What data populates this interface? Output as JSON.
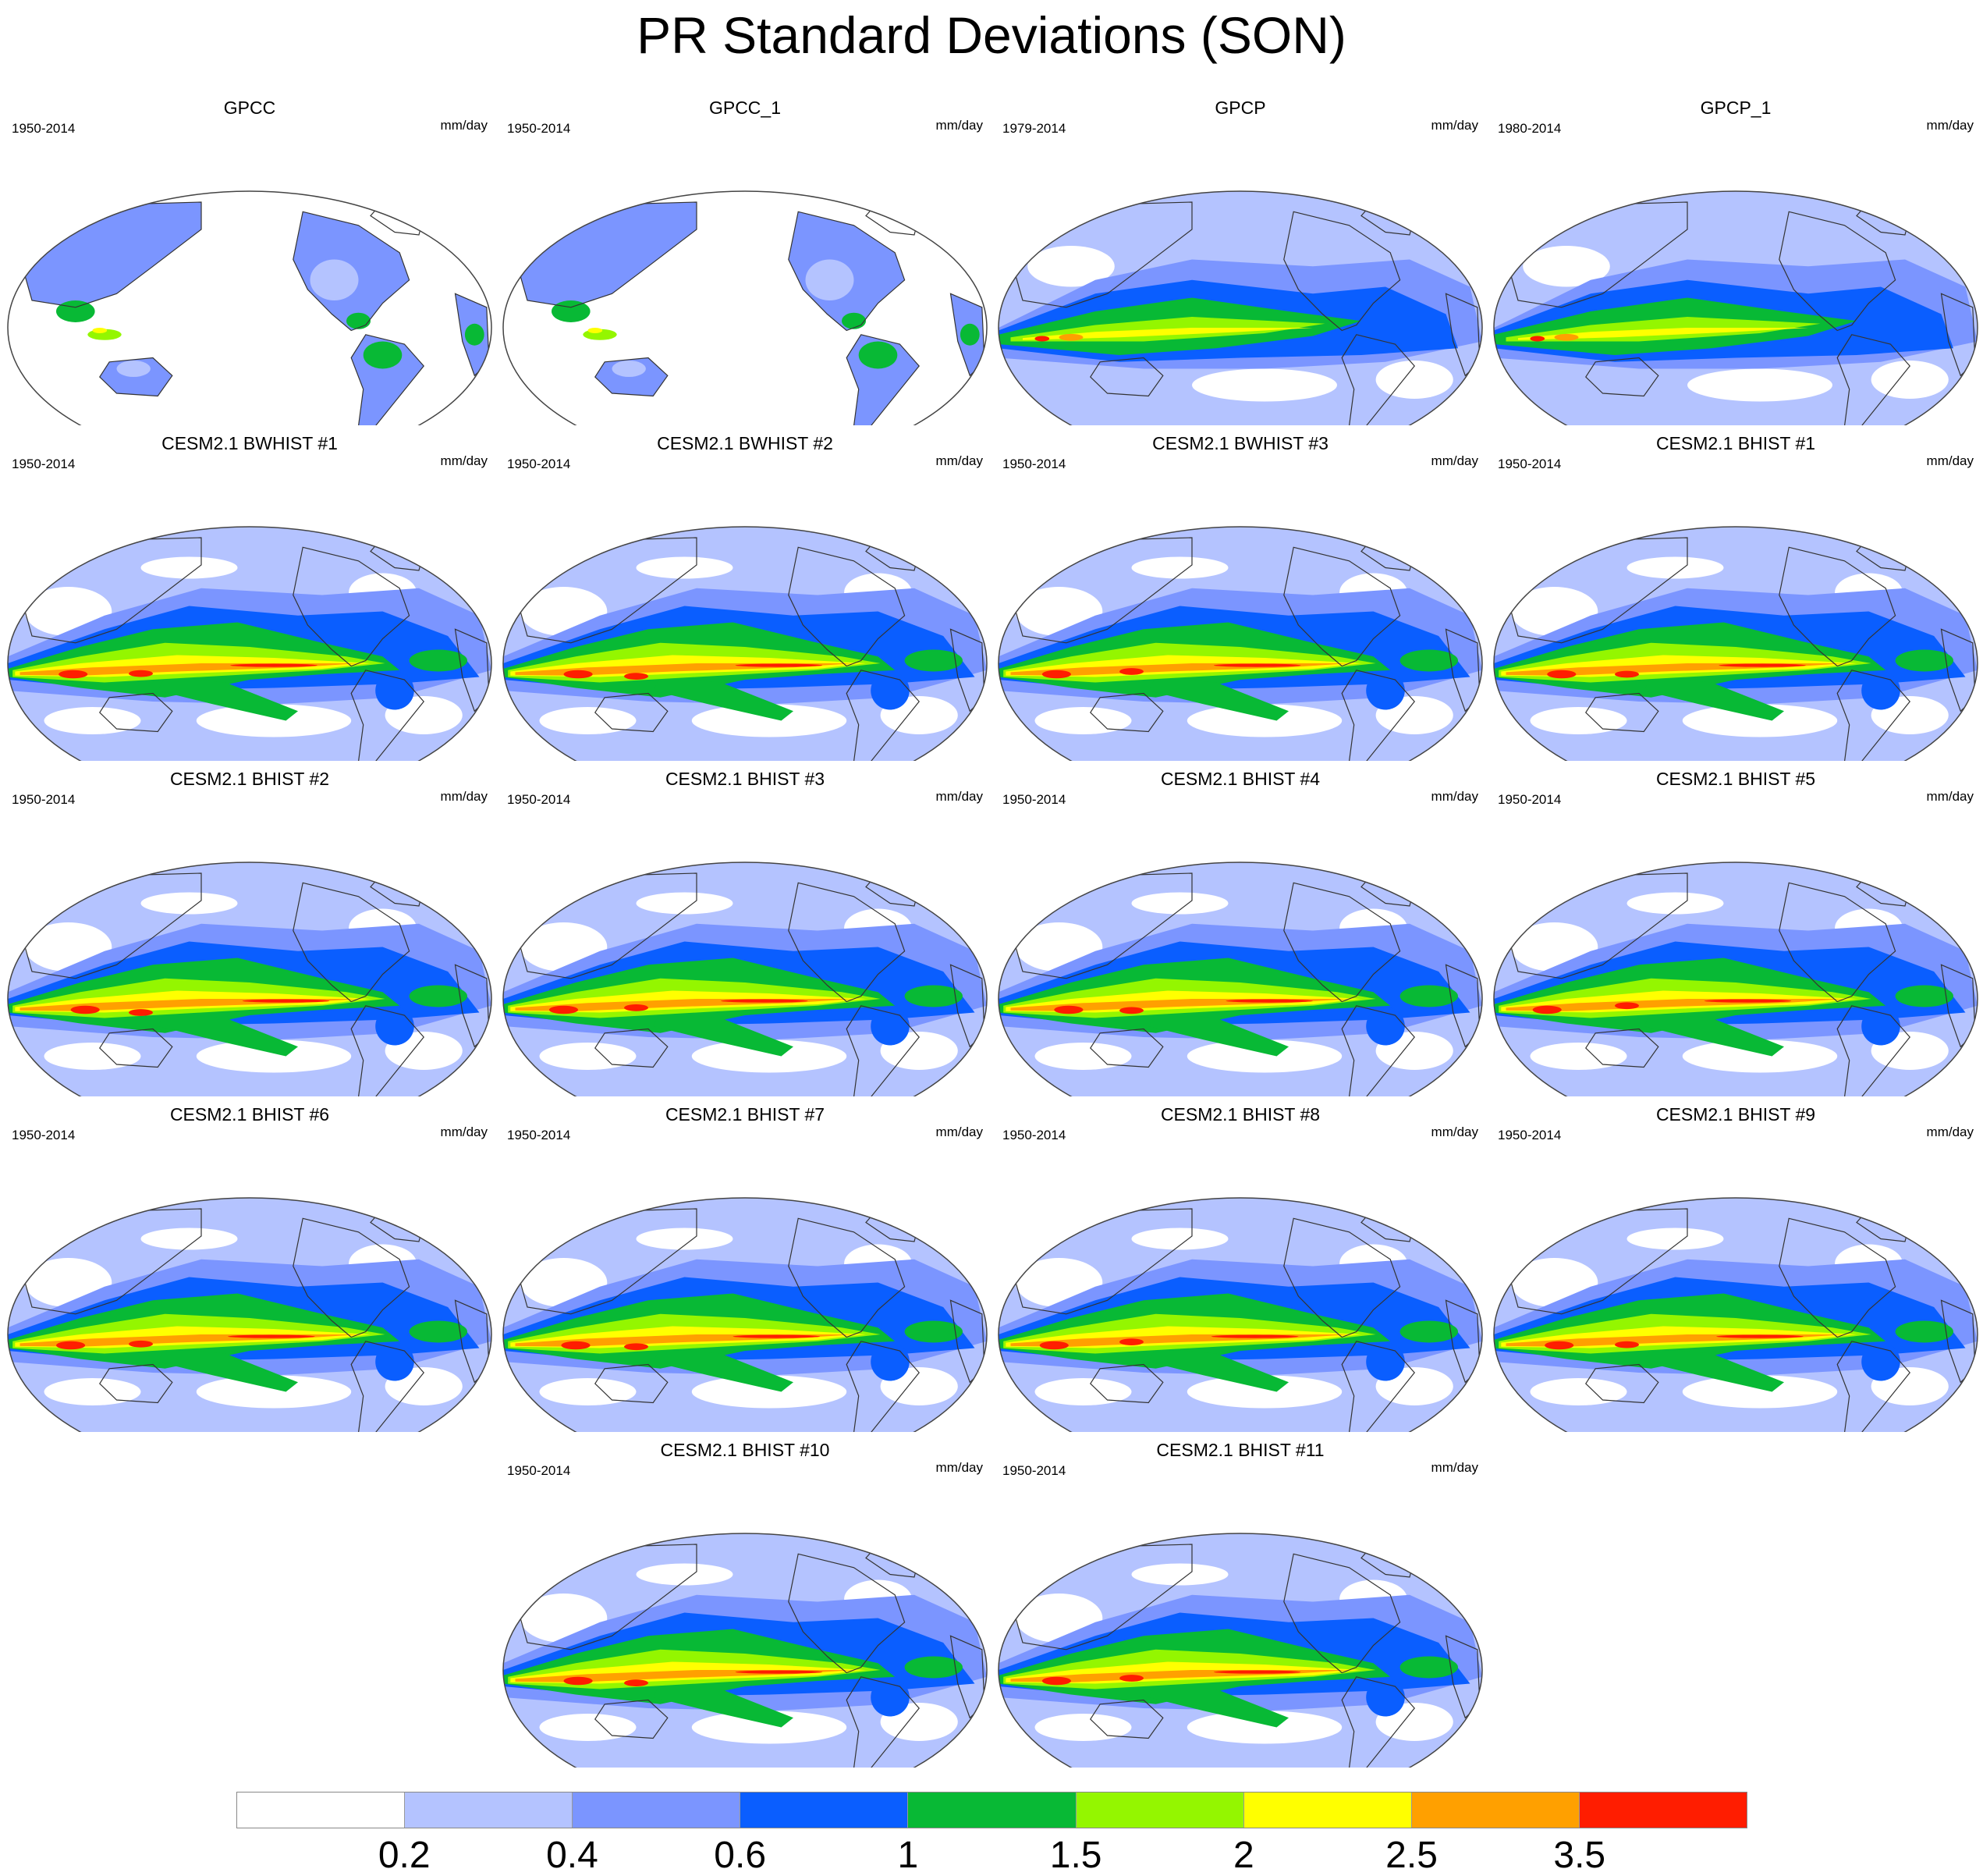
{
  "figure": {
    "title": "PR Standard Deviations (SON)",
    "units": "mm/day"
  },
  "colorbar": {
    "colors": [
      "#ffffff",
      "#b4c3ff",
      "#7b95ff",
      "#0a5eff",
      "#08b935",
      "#94f600",
      "#ffff00",
      "#ffa000",
      "#ff1d00"
    ],
    "labels": [
      "0.2",
      "0.4",
      "0.6",
      "1",
      "1.5",
      "2",
      "2.5",
      "3.5"
    ]
  },
  "panels": [
    {
      "title": "GPCC",
      "period": "1950-2014",
      "units": "mm/day",
      "kind": "land"
    },
    {
      "title": "GPCC_1",
      "period": "1950-2014",
      "units": "mm/day",
      "kind": "land"
    },
    {
      "title": "GPCP",
      "period": "1979-2014",
      "units": "mm/day",
      "kind": "obs"
    },
    {
      "title": "GPCP_1",
      "period": "1980-2014",
      "units": "mm/day",
      "kind": "obs"
    },
    {
      "title": "CESM2.1 BWHIST #1",
      "period": "1950-2014",
      "units": "mm/day",
      "kind": "model"
    },
    {
      "title": "CESM2.1 BWHIST #2",
      "period": "1950-2014",
      "units": "mm/day",
      "kind": "model"
    },
    {
      "title": "CESM2.1 BWHIST #3",
      "period": "1950-2014",
      "units": "mm/day",
      "kind": "model"
    },
    {
      "title": "CESM2.1 BHIST #1",
      "period": "1950-2014",
      "units": "mm/day",
      "kind": "model"
    },
    {
      "title": "CESM2.1 BHIST #2",
      "period": "1950-2014",
      "units": "mm/day",
      "kind": "model"
    },
    {
      "title": "CESM2.1 BHIST #3",
      "period": "1950-2014",
      "units": "mm/day",
      "kind": "model"
    },
    {
      "title": "CESM2.1 BHIST #4",
      "period": "1950-2014",
      "units": "mm/day",
      "kind": "model"
    },
    {
      "title": "CESM2.1 BHIST #5",
      "period": "1950-2014",
      "units": "mm/day",
      "kind": "model"
    },
    {
      "title": "CESM2.1 BHIST #6",
      "period": "1950-2014",
      "units": "mm/day",
      "kind": "model"
    },
    {
      "title": "CESM2.1 BHIST #7",
      "period": "1950-2014",
      "units": "mm/day",
      "kind": "model"
    },
    {
      "title": "CESM2.1 BHIST #8",
      "period": "1950-2014",
      "units": "mm/day",
      "kind": "model"
    },
    {
      "title": "CESM2.1 BHIST #9",
      "period": "1950-2014",
      "units": "mm/day",
      "kind": "model"
    },
    {
      "title": "CESM2.1 BHIST #10",
      "period": "1950-2014",
      "units": "mm/day",
      "kind": "model"
    },
    {
      "title": "CESM2.1 BHIST #11",
      "period": "1950-2014",
      "units": "mm/day",
      "kind": "model"
    }
  ]
}
